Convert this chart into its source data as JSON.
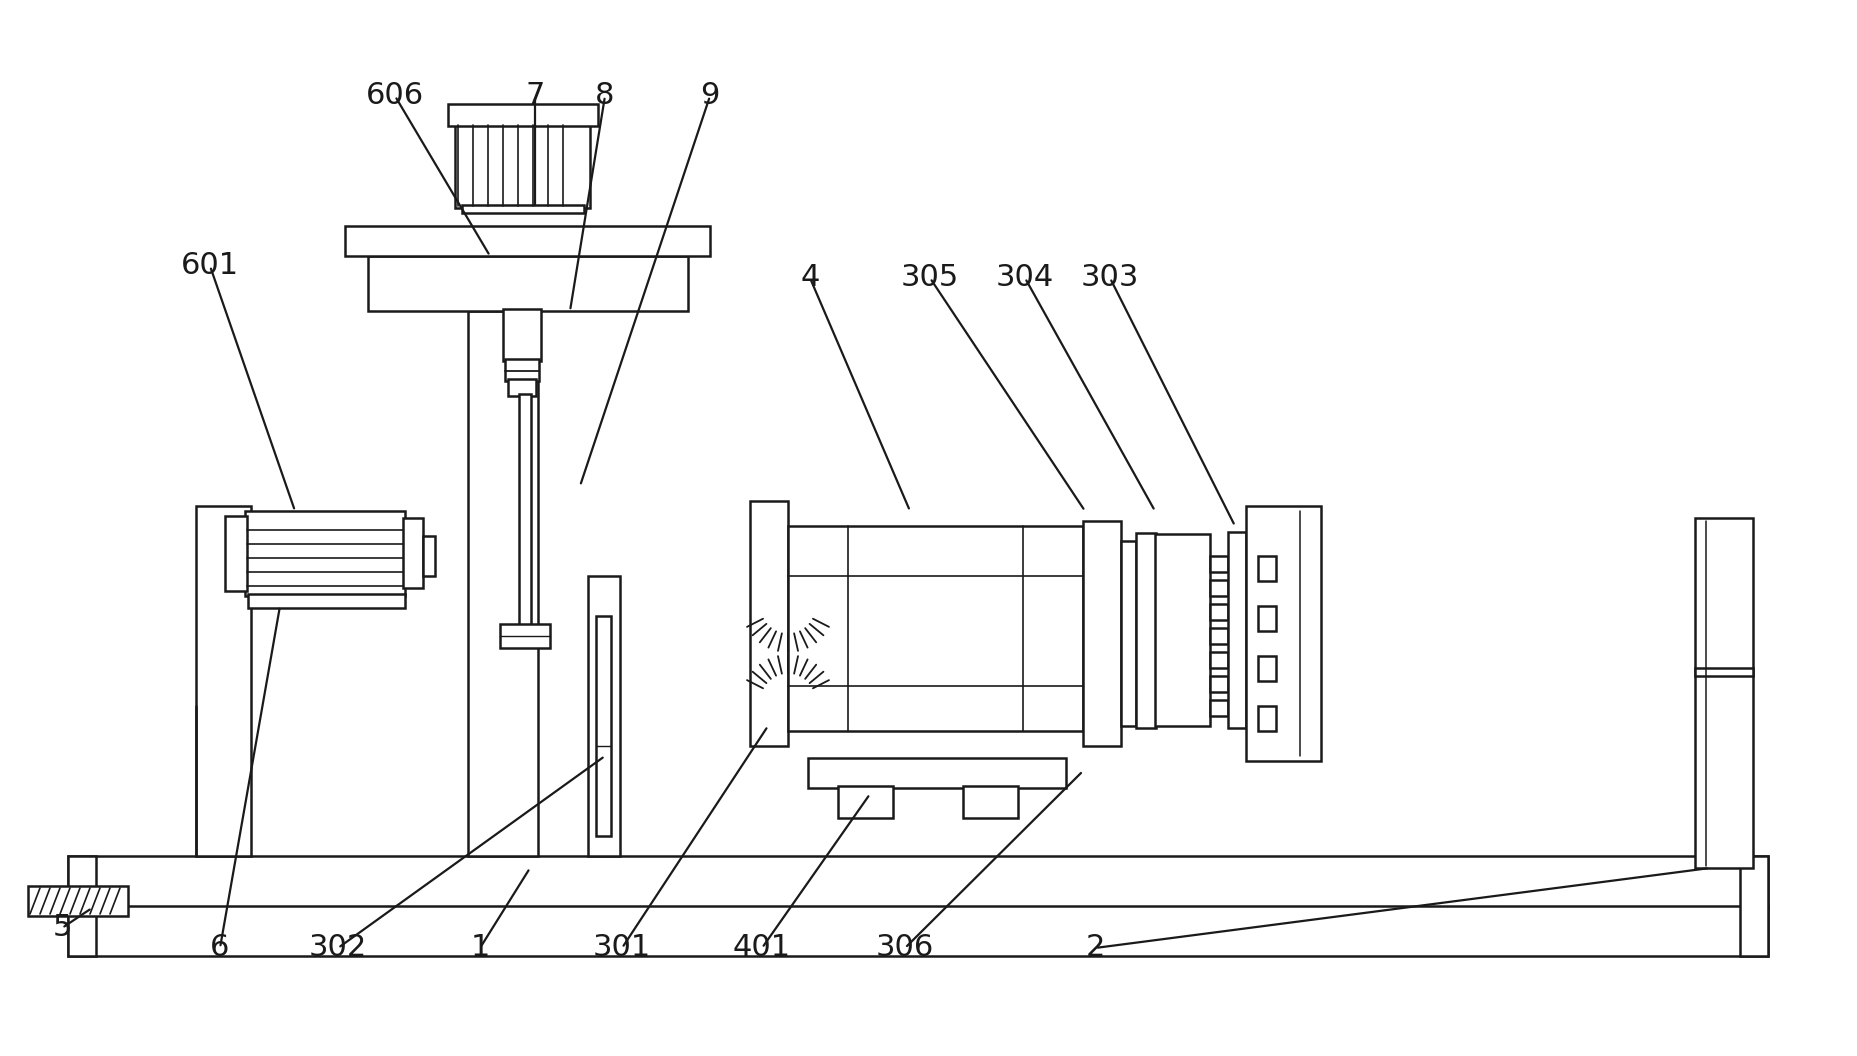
{
  "bg_color": "#ffffff",
  "line_color": "#1a1a1a",
  "lw": 1.8,
  "fig_w": 18.58,
  "fig_h": 10.56,
  "dpi": 100,
  "annotations": [
    [
      "606",
      395,
      960,
      490,
      800
    ],
    [
      "7",
      535,
      960,
      535,
      848
    ],
    [
      "8",
      605,
      960,
      570,
      745
    ],
    [
      "9",
      710,
      960,
      580,
      570
    ],
    [
      "601",
      210,
      790,
      295,
      545
    ],
    [
      "4",
      810,
      778,
      910,
      545
    ],
    [
      "305",
      930,
      778,
      1085,
      545
    ],
    [
      "304",
      1025,
      778,
      1155,
      545
    ],
    [
      "303",
      1110,
      778,
      1235,
      530
    ],
    [
      "5",
      62,
      128,
      92,
      148
    ],
    [
      "6",
      220,
      108,
      280,
      450
    ],
    [
      "302",
      338,
      108,
      605,
      300
    ],
    [
      "1",
      480,
      108,
      530,
      188
    ],
    [
      "301",
      622,
      108,
      768,
      330
    ],
    [
      "401",
      762,
      108,
      870,
      262
    ],
    [
      "306",
      905,
      108,
      1083,
      285
    ],
    [
      "2",
      1095,
      108,
      1710,
      188
    ]
  ]
}
